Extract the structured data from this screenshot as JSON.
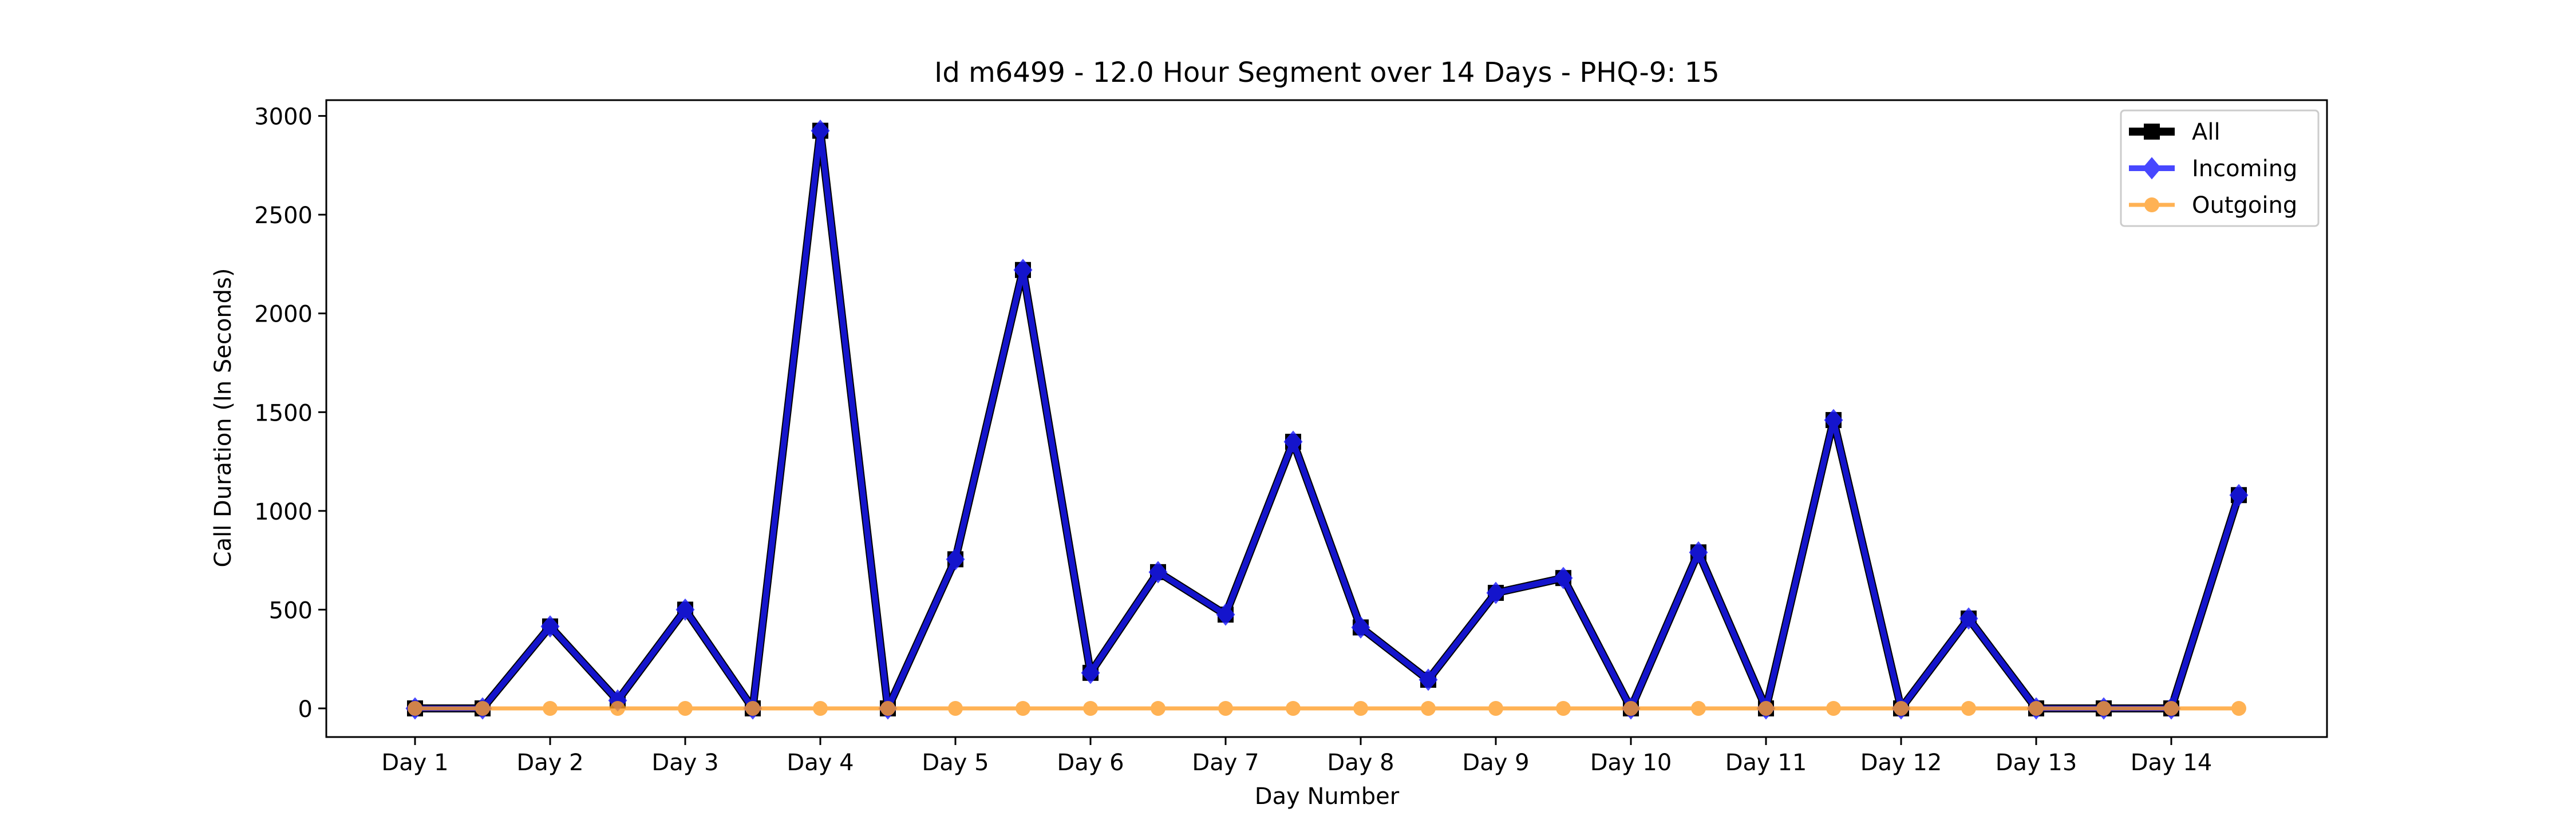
{
  "chart_data": {
    "type": "line",
    "title": "Id m6499 - 12.0 Hour Segment over 14 Days - PHQ-9: 15",
    "xlabel": "Day Number",
    "ylabel": "Call Duration (In Seconds)",
    "x_ticks": [
      "Day 1",
      "Day 2",
      "Day 3",
      "Day 4",
      "Day 5",
      "Day 6",
      "Day 7",
      "Day 8",
      "Day 9",
      "Day 10",
      "Day 11",
      "Day 12",
      "Day 13",
      "Day 14"
    ],
    "y_ticks": [
      0,
      500,
      1000,
      1500,
      2000,
      2500,
      3000
    ],
    "ylim": [
      -145,
      3080
    ],
    "grid": false,
    "legend_position": "top-right",
    "series": [
      {
        "name": "All",
        "color": "#000000",
        "marker": "square",
        "values": [
          0,
          0,
          415,
          40,
          500,
          0,
          2925,
          0,
          755,
          2220,
          180,
          690,
          475,
          1350,
          410,
          145,
          585,
          660,
          0,
          790,
          0,
          1460,
          0,
          455,
          0,
          0,
          0,
          1080
        ]
      },
      {
        "name": "Incoming",
        "color": "#1a1aff",
        "marker": "diamond",
        "values": [
          0,
          0,
          415,
          40,
          500,
          0,
          2925,
          0,
          755,
          2220,
          180,
          690,
          475,
          1350,
          410,
          145,
          585,
          660,
          0,
          790,
          0,
          1460,
          0,
          455,
          0,
          0,
          0,
          1080
        ]
      },
      {
        "name": "Outgoing",
        "color": "#ff9f2a",
        "marker": "circle",
        "values": [
          0,
          0,
          0,
          0,
          0,
          0,
          0,
          0,
          0,
          0,
          0,
          0,
          0,
          0,
          0,
          0,
          0,
          0,
          0,
          0,
          0,
          0,
          0,
          0,
          0,
          0,
          0,
          0
        ]
      }
    ]
  }
}
